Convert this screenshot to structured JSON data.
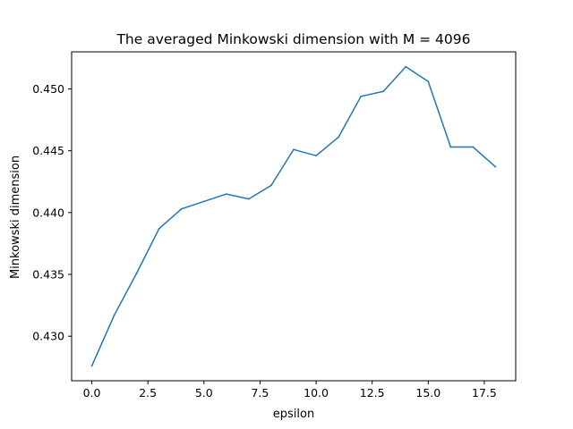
{
  "chart_data": {
    "type": "line",
    "title": "The averaged Minkowski dimension with M = 4096",
    "xlabel": "epsilon",
    "ylabel": "Minkowski dimension",
    "xlim": [
      -0.9,
      18.9
    ],
    "ylim": [
      0.4264,
      0.453
    ],
    "xticks": [
      0.0,
      2.5,
      5.0,
      7.5,
      10.0,
      12.5,
      15.0,
      17.5
    ],
    "xtick_labels": [
      "0.0",
      "2.5",
      "5.0",
      "7.5",
      "10.0",
      "12.5",
      "15.0",
      "17.5"
    ],
    "yticks": [
      0.43,
      0.435,
      0.44,
      0.445,
      0.45
    ],
    "ytick_labels": [
      "0.430",
      "0.435",
      "0.440",
      "0.445",
      "0.450"
    ],
    "grid": false,
    "series_color": "#1f77b4",
    "series": [
      {
        "x": [
          0,
          1,
          2,
          3,
          4,
          5,
          6,
          7,
          8,
          9,
          10,
          11,
          12,
          13,
          14,
          15,
          16,
          17,
          18
        ],
        "values": [
          0.4276,
          0.4317,
          0.4351,
          0.4387,
          0.4403,
          0.4409,
          0.4415,
          0.4411,
          0.4422,
          0.4451,
          0.4446,
          0.4461,
          0.4494,
          0.4498,
          0.4518,
          0.4506,
          0.4453,
          0.4453,
          0.4437
        ]
      }
    ]
  }
}
